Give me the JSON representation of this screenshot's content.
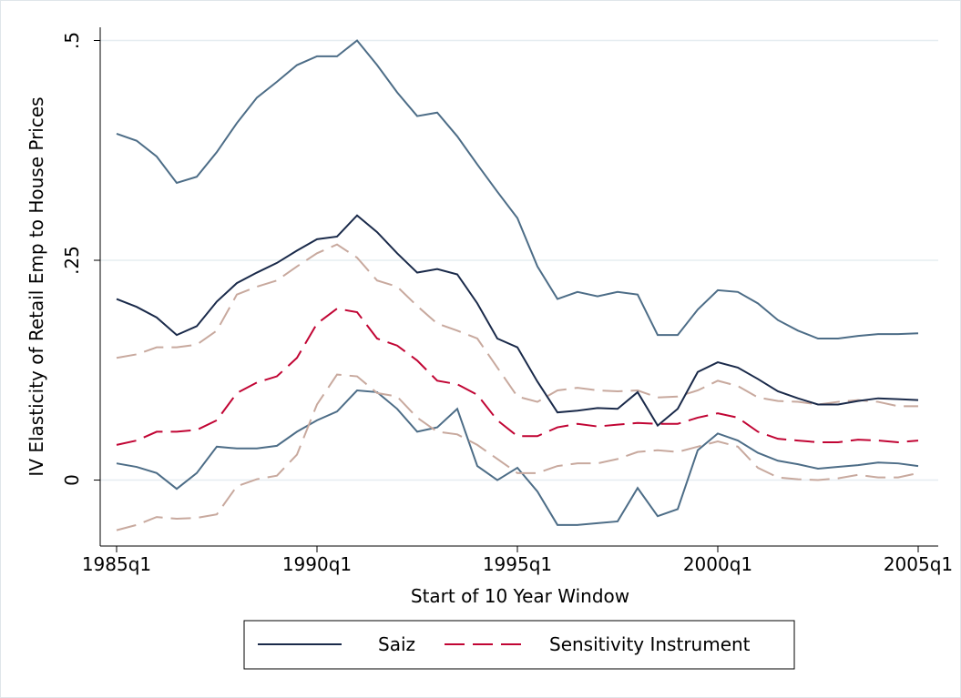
{
  "chart_data": {
    "type": "line",
    "x_label": "Start of 10 Year Window",
    "y_label": "IV Elasticity of Retail Emp to House Prices",
    "categories": [
      "1985q1",
      "1985q3",
      "1986q1",
      "1986q3",
      "1987q1",
      "1987q3",
      "1988q1",
      "1988q3",
      "1989q1",
      "1989q3",
      "1990q1",
      "1990q3",
      "1991q1",
      "1991q3",
      "1992q1",
      "1992q3",
      "1993q1",
      "1993q3",
      "1994q1",
      "1994q3",
      "1995q1",
      "1995q3",
      "1996q1",
      "1996q3",
      "1997q1",
      "1997q3",
      "1998q1",
      "1998q3",
      "1999q1",
      "1999q3",
      "2000q1",
      "2000q3",
      "2001q1",
      "2001q3",
      "2002q1",
      "2002q3",
      "2003q1",
      "2003q3",
      "2004q1",
      "2004q3",
      "2005q1"
    ],
    "xticks": [
      "1985q1",
      "1990q1",
      "1995q1",
      "2000q1",
      "2005q1"
    ],
    "ylim": [
      -0.075,
      0.515
    ],
    "yticks": [
      0,
      {
        "value": 0.25,
        "label": ".25"
      },
      {
        "value": 0.5,
        "label": ".5"
      }
    ],
    "grid": true,
    "series": [
      {
        "name": "Saiz",
        "color": "#1a2a4a",
        "dashed": false,
        "band_color": "#4d6d87",
        "values": [
          0.206,
          0.197,
          0.185,
          0.165,
          0.175,
          0.203,
          0.224,
          0.236,
          0.247,
          0.261,
          0.274,
          0.277,
          0.301,
          0.282,
          0.258,
          0.236,
          0.24,
          0.234,
          0.201,
          0.161,
          0.151,
          0.112,
          0.077,
          0.079,
          0.082,
          0.081,
          0.1,
          0.062,
          0.081,
          0.123,
          0.134,
          0.128,
          0.115,
          0.101,
          0.093,
          0.086,
          0.086,
          0.09,
          0.093,
          0.092,
          0.091
        ],
        "upper": [
          0.394,
          0.386,
          0.368,
          0.338,
          0.345,
          0.373,
          0.406,
          0.435,
          0.453,
          0.472,
          0.482,
          0.482,
          0.5,
          0.472,
          0.441,
          0.414,
          0.418,
          0.391,
          0.359,
          0.328,
          0.298,
          0.243,
          0.206,
          0.214,
          0.209,
          0.214,
          0.211,
          0.165,
          0.165,
          0.194,
          0.216,
          0.214,
          0.201,
          0.182,
          0.17,
          0.161,
          0.161,
          0.164,
          0.166,
          0.166,
          0.167
        ],
        "lower": [
          0.019,
          0.015,
          0.008,
          -0.01,
          0.008,
          0.038,
          0.036,
          0.036,
          0.039,
          0.055,
          0.068,
          0.078,
          0.102,
          0.1,
          0.081,
          0.055,
          0.06,
          0.081,
          0.016,
          0,
          0.014,
          -0.013,
          -0.051,
          -0.051,
          -0.049,
          -0.047,
          -0.009,
          -0.041,
          -0.033,
          0.034,
          0.053,
          0.045,
          0.031,
          0.022,
          0.018,
          0.013,
          0.015,
          0.017,
          0.02,
          0.019,
          0.016
        ]
      },
      {
        "name": "Sensitivity Instrument",
        "color": "#c10534",
        "dashed": true,
        "band_color": "#c8a99e",
        "values": [
          0.04,
          0.045,
          0.055,
          0.055,
          0.057,
          0.068,
          0.099,
          0.111,
          0.118,
          0.139,
          0.178,
          0.195,
          0.191,
          0.161,
          0.153,
          0.136,
          0.113,
          0.109,
          0.097,
          0.068,
          0.05,
          0.05,
          0.06,
          0.064,
          0.061,
          0.063,
          0.065,
          0.064,
          0.064,
          0.071,
          0.076,
          0.071,
          0.055,
          0.047,
          0.045,
          0.043,
          0.043,
          0.046,
          0.045,
          0.043,
          0.045
        ],
        "upper": [
          0.139,
          0.143,
          0.151,
          0.151,
          0.154,
          0.17,
          0.211,
          0.22,
          0.227,
          0.243,
          0.258,
          0.268,
          0.253,
          0.227,
          0.22,
          0.198,
          0.178,
          0.17,
          0.161,
          0.128,
          0.095,
          0.089,
          0.102,
          0.105,
          0.102,
          0.101,
          0.102,
          0.094,
          0.095,
          0.102,
          0.113,
          0.107,
          0.094,
          0.09,
          0.089,
          0.086,
          0.089,
          0.091,
          0.089,
          0.084,
          0.084
        ],
        "lower": [
          -0.057,
          -0.051,
          -0.042,
          -0.044,
          -0.043,
          -0.039,
          -0.007,
          0.001,
          0.005,
          0.029,
          0.086,
          0.12,
          0.118,
          0.099,
          0.095,
          0.071,
          0.055,
          0.052,
          0.04,
          0.024,
          0.008,
          0.008,
          0.016,
          0.019,
          0.019,
          0.024,
          0.032,
          0.034,
          0.032,
          0.038,
          0.044,
          0.038,
          0.014,
          0.003,
          0.001,
          0,
          0.002,
          0.006,
          0.003,
          0.003,
          0.008
        ]
      }
    ]
  }
}
